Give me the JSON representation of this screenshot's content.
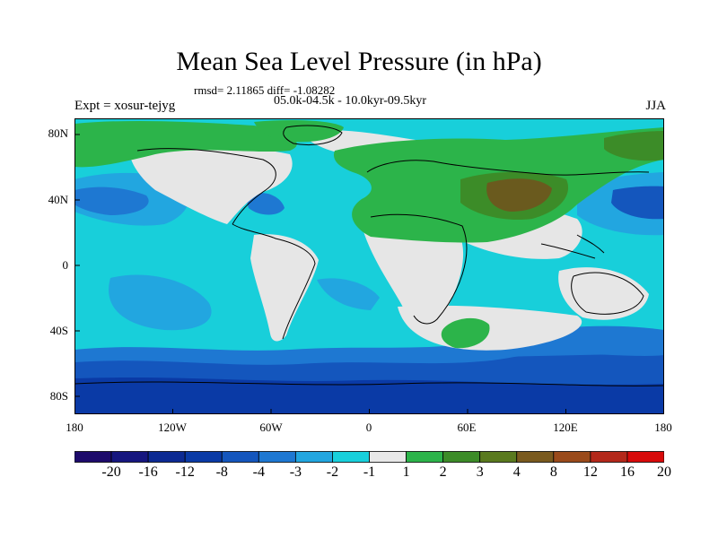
{
  "title": "Mean Sea Level Pressure (in hPa)",
  "stats": "rmsd= 2.11865 diff= -1.08282",
  "experiment": "Expt = xosur-tejyg",
  "period": "05.0k-04.5k - 10.0kyr-09.5kyr",
  "season": "JJA",
  "lat_labels": [
    "80N",
    "40N",
    "0",
    "40S",
    "80S"
  ],
  "lon_labels": [
    "180",
    "120W",
    "60W",
    "0",
    "60E",
    "120E",
    "180"
  ],
  "colorbar": {
    "labels": [
      "-20",
      "-16",
      "-12",
      "-8",
      "-4",
      "-3",
      "-2",
      "-1",
      "1",
      "2",
      "3",
      "4",
      "8",
      "12",
      "16",
      "20"
    ],
    "colors": [
      "#1d0a6b",
      "#16167f",
      "#0c2a93",
      "#0a3aa6",
      "#1456bd",
      "#1e78d2",
      "#22a6e0",
      "#18d0dc",
      "#e8e8e8",
      "#2cb44a",
      "#3c8c28",
      "#5a7a1e",
      "#7a5a1e",
      "#9a4a1a",
      "#b4281a",
      "#d80a0a"
    ]
  },
  "map_colors": {
    "neutral": "#e6e6e6",
    "weak_low": "#18cfda",
    "mod_low": "#22a6e0",
    "low": "#1e78d2",
    "strong_low": "#1456bd",
    "deep_low": "#0a3aa6",
    "weak_high": "#2cb44a",
    "mod_high": "#3c8c28",
    "high": "#6a5a1e"
  }
}
